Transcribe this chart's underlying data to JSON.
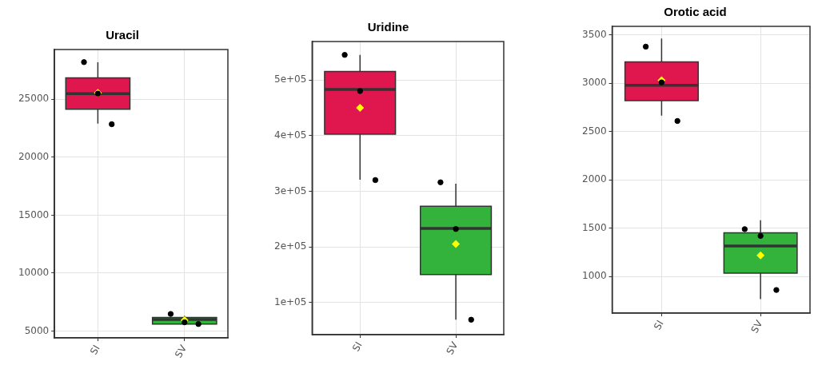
{
  "chart_data": [
    {
      "type": "box",
      "title": "Uracil",
      "categories": [
        "SI",
        "SV"
      ],
      "colors": [
        "#e0174f",
        "#33b33c"
      ],
      "grid": true,
      "boxes": [
        {
          "low": 22900,
          "q1": 24150,
          "median": 25490,
          "q3": 26860,
          "high": 28190,
          "mean": 25560
        },
        {
          "low": 5600,
          "q1": 5600,
          "median": 5990,
          "q3": 6160,
          "high": 6300,
          "mean": 5920
        }
      ],
      "series": [
        {
          "type": "scatter",
          "color": "#000000",
          "x": [
            "SI",
            "SI",
            "SI",
            "SV",
            "SV",
            "SV"
          ],
          "values": [
            28210,
            25500,
            22850,
            6470,
            5750,
            5600
          ]
        }
      ],
      "ylim": [
        4400,
        29300
      ],
      "yticks": [
        5000,
        10000,
        15000,
        20000,
        25000
      ]
    },
    {
      "type": "box",
      "title": "Uridine",
      "categories": [
        "SI",
        "SV"
      ],
      "colors": [
        "#e0174f",
        "#33b33c"
      ],
      "grid": true,
      "boxes": [
        {
          "low": 320700,
          "q1": 402500,
          "median": 483000,
          "q3": 515000,
          "high": 545000,
          "mean": 450000
        },
        {
          "low": 69000,
          "q1": 150000,
          "median": 233000,
          "q3": 273000,
          "high": 313500,
          "mean": 205000
        }
      ],
      "series": [
        {
          "type": "scatter",
          "color": "#000000",
          "x": [
            "SI",
            "SI",
            "SI",
            "SV",
            "SV",
            "SV"
          ],
          "values": [
            545000,
            480000,
            320000,
            316000,
            232000,
            69000
          ]
        }
      ],
      "ylim": [
        42000,
        569000
      ],
      "yticks": [
        {
          "value": 100000,
          "label": "1e+05"
        },
        {
          "value": 200000,
          "label": "2e+05"
        },
        {
          "value": 300000,
          "label": "3e+05"
        },
        {
          "value": 400000,
          "label": "4e+05"
        },
        {
          "value": 500000,
          "label": "5e+05"
        }
      ]
    },
    {
      "type": "box",
      "title": "Orotic acid",
      "categories": [
        "SI",
        "SV"
      ],
      "colors": [
        "#e0174f",
        "#33b33c"
      ],
      "grid": true,
      "boxes": [
        {
          "low": 2665,
          "q1": 2820,
          "median": 2980,
          "q3": 3222,
          "high": 3463,
          "mean": 3031
        },
        {
          "low": 765,
          "q1": 1034,
          "median": 1316,
          "q3": 1453,
          "high": 1583,
          "mean": 1218
        }
      ],
      "series": [
        {
          "type": "scatter",
          "color": "#000000",
          "x": [
            "SI",
            "SI",
            "SI",
            "SV",
            "SV",
            "SV"
          ],
          "values": [
            3380,
            3010,
            2610,
            1490,
            1420,
            860
          ]
        }
      ],
      "ylim": [
        620,
        3590
      ],
      "yticks": [
        1000,
        1500,
        2000,
        2500,
        3000,
        3500
      ]
    }
  ]
}
